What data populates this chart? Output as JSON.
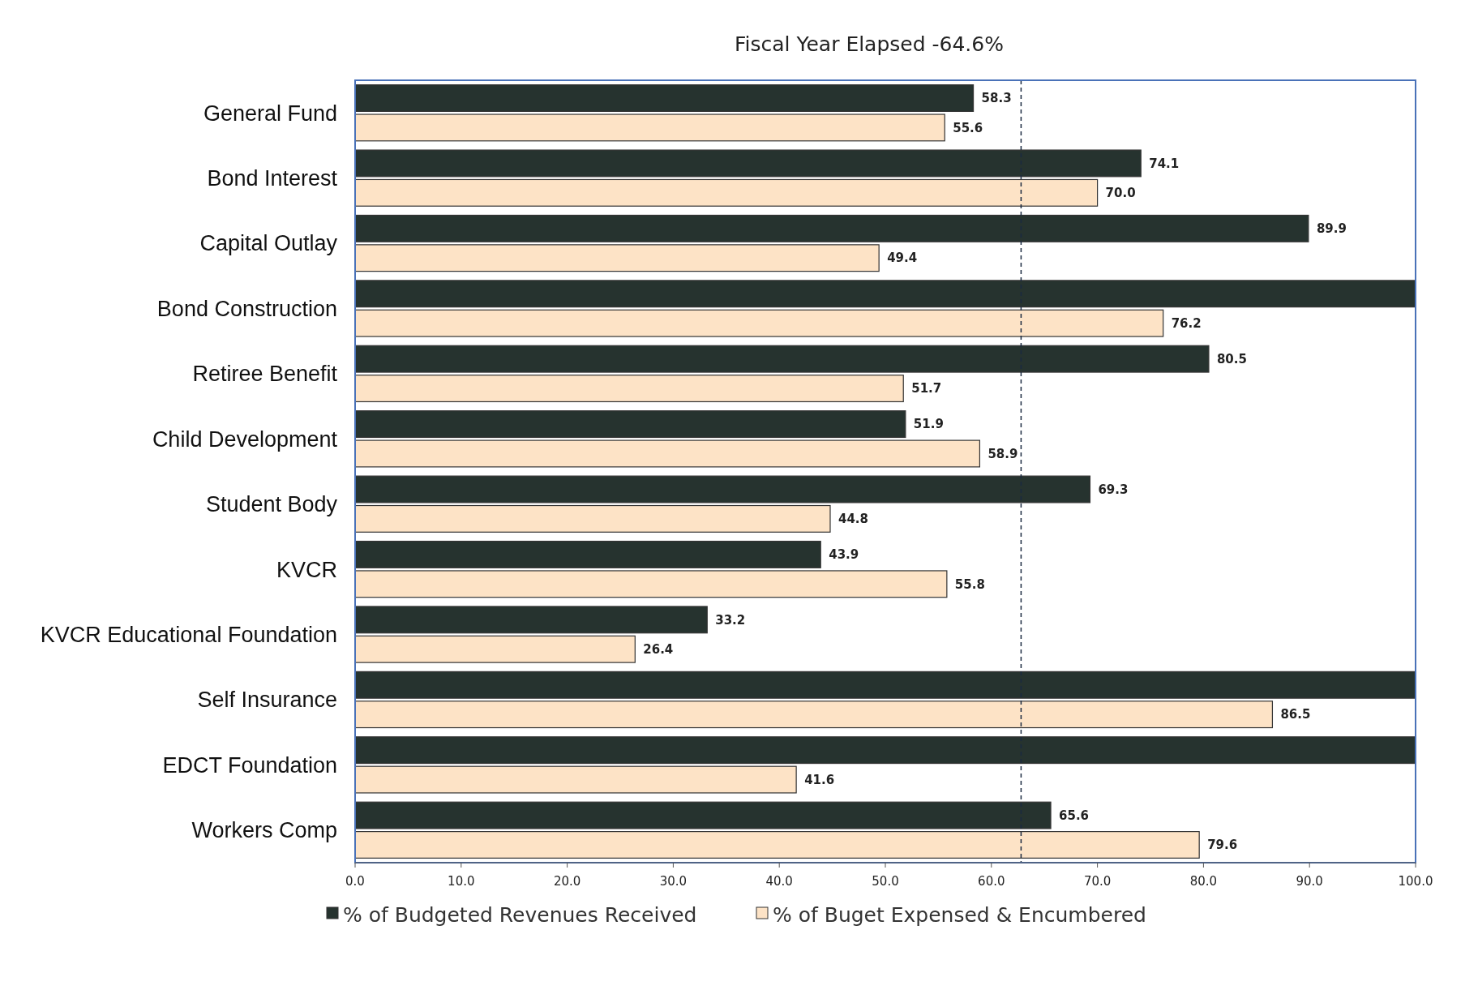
{
  "chart_data": {
    "type": "bar",
    "orientation": "horizontal",
    "title": "Fiscal Year Elapsed -64.6%",
    "categories": [
      "General Fund",
      "Bond Interest",
      "Capital Outlay",
      "Bond Construction",
      "Retiree Benefit",
      "Child Development",
      "Student Body",
      "KVCR",
      "KVCR Educational Foundation",
      "Self Insurance",
      "EDCT Foundation",
      "Workers Comp"
    ],
    "series": [
      {
        "name": "% of Budgeted Revenues Received",
        "color": "#26332f",
        "values": [
          58.3,
          74.1,
          89.9,
          100,
          80.5,
          51.9,
          69.3,
          43.9,
          33.2,
          100,
          100,
          65.6
        ],
        "value_labels": [
          "58.3",
          "74.1",
          "89.9",
          null,
          "80.5",
          "51.9",
          "69.3",
          "43.9",
          "33.2",
          null,
          null,
          "65.6"
        ]
      },
      {
        "name": "% of Buget Expensed & Encumbered",
        "color": "#fde3c6",
        "values": [
          55.6,
          70.0,
          49.4,
          76.2,
          51.7,
          58.9,
          44.8,
          55.8,
          26.4,
          86.5,
          41.6,
          79.6
        ],
        "value_labels": [
          "55.6",
          "70.0",
          "49.4",
          "76.2",
          "51.7",
          "58.9",
          "44.8",
          "55.8",
          "26.4",
          "86.5",
          "41.6",
          "79.6"
        ]
      }
    ],
    "xlim": [
      0,
      100
    ],
    "xticks": [
      {
        "value": 0,
        "label": "0.0"
      },
      {
        "value": 10,
        "label": "10.0"
      },
      {
        "value": 20,
        "label": "20.0"
      },
      {
        "value": 30,
        "label": "30.0"
      },
      {
        "value": 40,
        "label": "40.0"
      },
      {
        "value": 50,
        "label": "50.0"
      },
      {
        "value": 60,
        "label": "60.0"
      },
      {
        "value": 70,
        "label": "70.0"
      },
      {
        "value": 80,
        "label": "80.0"
      },
      {
        "value": 90,
        "label": "90.0"
      },
      {
        "value": 100,
        "label": "100.0"
      }
    ],
    "ref_lines": [
      {
        "axis": "x",
        "value": 62.8,
        "line_style": "dashed",
        "color": "#1a2a40"
      }
    ],
    "legend": "bottom"
  }
}
